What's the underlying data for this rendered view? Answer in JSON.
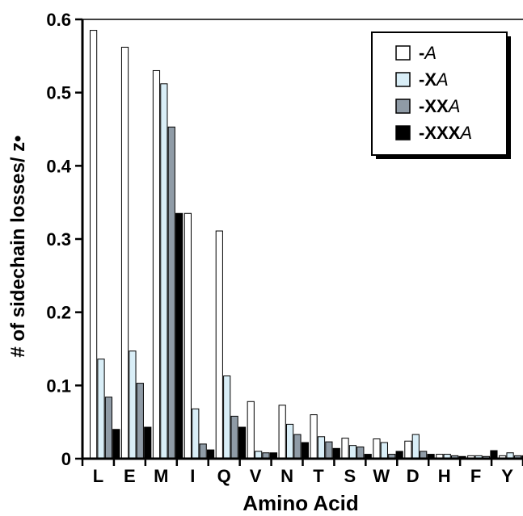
{
  "chart_data": {
    "type": "bar",
    "title": "",
    "xlabel": "Amino Acid",
    "ylabel": "# of sidechain losses/ z•",
    "ylim": [
      0,
      0.6
    ],
    "yticks": [
      "0",
      "0.1",
      "0.2",
      "0.3",
      "0.4",
      "0.5",
      "0.6"
    ],
    "categories": [
      "L",
      "E",
      "M",
      "I",
      "Q",
      "V",
      "N",
      "T",
      "S",
      "W",
      "D",
      "H",
      "F",
      "Y"
    ],
    "legend_position": "top-right",
    "grid": false,
    "series": [
      {
        "name": "-A",
        "legend": {
          "prefix": "-",
          "bold": "",
          "italic": "A"
        },
        "color": "#ffffff",
        "values": [
          0.585,
          0.562,
          0.53,
          0.335,
          0.311,
          0.078,
          0.073,
          0.06,
          0.028,
          0.027,
          0.024,
          0.006,
          0.004,
          0.004
        ]
      },
      {
        "name": "-XA",
        "legend": {
          "prefix": "-",
          "bold": "X",
          "italic": "A"
        },
        "color": "#d9eef7",
        "values": [
          0.136,
          0.147,
          0.512,
          0.068,
          0.113,
          0.01,
          0.047,
          0.03,
          0.018,
          0.022,
          0.033,
          0.006,
          0.004,
          0.008
        ]
      },
      {
        "name": "-XXA",
        "legend": {
          "prefix": "-",
          "bold": "XX",
          "italic": "A"
        },
        "color": "#8f9ba6",
        "values": [
          0.084,
          0.103,
          0.453,
          0.02,
          0.058,
          0.008,
          0.033,
          0.023,
          0.016,
          0.006,
          0.01,
          0.004,
          0.003,
          0.004
        ]
      },
      {
        "name": "-XXXA",
        "legend": {
          "prefix": "-",
          "bold": "XXX",
          "italic": "A"
        },
        "color": "#000000",
        "values": [
          0.04,
          0.043,
          0.335,
          0.012,
          0.043,
          0.008,
          0.022,
          0.014,
          0.006,
          0.01,
          0.006,
          0.003,
          0.011,
          0.004
        ]
      }
    ]
  }
}
